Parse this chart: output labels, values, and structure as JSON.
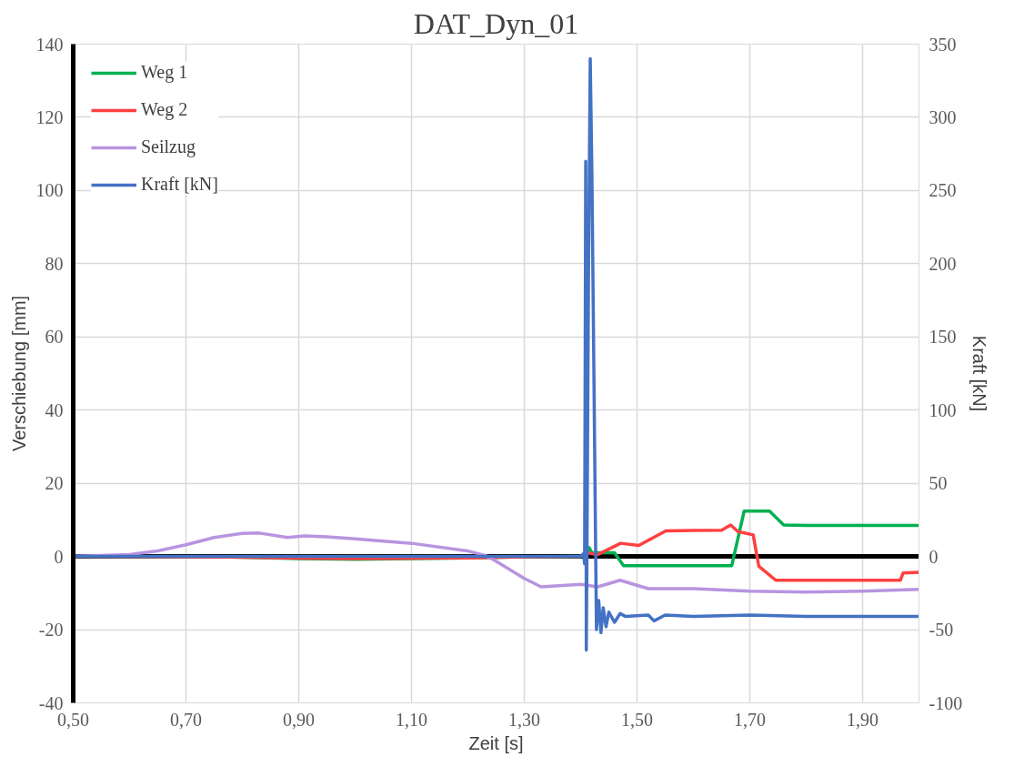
{
  "chart_data": {
    "type": "line",
    "title": "DAT_Dyn_01",
    "xlabel": "Zeit [s]",
    "ylabel": "Verschiebung [mm]",
    "y2label": "Kraft [kN]",
    "xlim": [
      0.5,
      2.0
    ],
    "xticks": [
      {
        "value": 0.5,
        "label": "0,50"
      },
      {
        "value": 0.7,
        "label": "0,70"
      },
      {
        "value": 0.9,
        "label": "0,90"
      },
      {
        "value": 1.1,
        "label": "1,10"
      },
      {
        "value": 1.3,
        "label": "1,30"
      },
      {
        "value": 1.5,
        "label": "1,50"
      },
      {
        "value": 1.7,
        "label": "1,70"
      },
      {
        "value": 1.9,
        "label": "1,90"
      }
    ],
    "ylim": [
      -40,
      140
    ],
    "yticks": [
      -40,
      -20,
      0,
      20,
      40,
      60,
      80,
      100,
      120,
      140
    ],
    "y2lim": [
      -100,
      350
    ],
    "y2ticks": [
      -100,
      -50,
      0,
      50,
      100,
      150,
      200,
      250,
      300,
      350
    ],
    "grid": true,
    "legend": "top left",
    "marker": "none",
    "line_style": "solid",
    "ref_lines": [
      {
        "axis": "y",
        "value": 0,
        "color": "#000000"
      }
    ],
    "series": [
      {
        "name": "Weg 1",
        "color": "#00b050",
        "x": [
          0.5,
          0.8,
          0.9,
          1.0,
          1.1,
          1.2,
          1.3,
          1.4,
          1.41,
          1.415,
          1.42,
          1.46,
          1.476,
          1.55,
          1.668,
          1.69,
          1.735,
          1.76,
          1.8,
          2.0
        ],
        "values": [
          0,
          -0.2,
          -0.6,
          -0.8,
          -0.6,
          -0.4,
          -0.1,
          0,
          0.5,
          2.4,
          1,
          1,
          -2.5,
          -2.5,
          -2.5,
          12.4,
          12.4,
          8.6,
          8.5,
          8.5
        ]
      },
      {
        "name": "Weg 2",
        "color": "#ff4040",
        "x": [
          0.5,
          0.8,
          0.9,
          1.0,
          1.2,
          1.3,
          1.4,
          1.41,
          1.43,
          1.471,
          1.503,
          1.551,
          1.65,
          1.666,
          1.679,
          1.706,
          1.716,
          1.746,
          1.967,
          1.972,
          2.0
        ],
        "values": [
          0,
          -0.2,
          -0.5,
          -0.6,
          -0.4,
          -0.1,
          0,
          1,
          0.5,
          3.6,
          3.0,
          7.0,
          7.2,
          8.6,
          6.8,
          5.9,
          -2.7,
          -6.5,
          -6.5,
          -4.5,
          -4.3
        ]
      },
      {
        "name": "Seilzug",
        "color": "#b894e0",
        "x": [
          0.5,
          0.6,
          0.65,
          0.7,
          0.75,
          0.8,
          0.83,
          0.88,
          0.91,
          0.95,
          1.0,
          1.1,
          1.2,
          1.23,
          1.247,
          1.3,
          1.33,
          1.4,
          1.43,
          1.47,
          1.52,
          1.6,
          1.7,
          1.8,
          1.9,
          2.0
        ],
        "values": [
          0,
          0.5,
          1.5,
          3.2,
          5.2,
          6.3,
          6.4,
          5.2,
          5.6,
          5.4,
          4.8,
          3.6,
          1.5,
          0.3,
          -1,
          -6,
          -8.3,
          -7.6,
          -8.3,
          -6.5,
          -8.8,
          -8.8,
          -9.5,
          -9.7,
          -9.5,
          -9
        ]
      },
      {
        "name": "Kraft [kN]",
        "color": "#4472c4",
        "axis": "y2",
        "x": [
          0.5,
          1.4,
          1.405,
          1.407,
          1.409,
          1.41,
          1.411,
          1.414,
          1.417,
          1.42,
          1.428,
          1.432,
          1.436,
          1.44,
          1.445,
          1.45,
          1.46,
          1.47,
          1.48,
          1.52,
          1.53,
          1.55,
          1.6,
          1.7,
          1.8,
          2.0
        ],
        "values": [
          0,
          0,
          2,
          -5,
          270,
          -64,
          -10,
          200,
          340,
          260,
          -50,
          -30,
          -52,
          -35,
          -48,
          -38,
          -45,
          -39,
          -41,
          -40,
          -44,
          -40,
          -41,
          -40,
          -41,
          -41
        ]
      }
    ]
  }
}
